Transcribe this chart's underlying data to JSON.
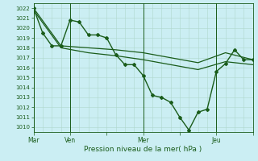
{
  "xlabel": "Pression niveau de la mer( hPa )",
  "ylim": [
    1009.5,
    1022.5
  ],
  "xlim": [
    0,
    48
  ],
  "yticks": [
    1010,
    1011,
    1012,
    1013,
    1014,
    1015,
    1016,
    1017,
    1018,
    1019,
    1020,
    1021,
    1022
  ],
  "bg_color": "#cbeef3",
  "grid_major_color": "#b0d8cc",
  "grid_minor_color": "#cde8e0",
  "line_color": "#1a5c1a",
  "axis_color": "#336633",
  "xtick_labels": [
    "Mar",
    "Ven",
    "",
    "Mer",
    "",
    "Jeu",
    ""
  ],
  "xtick_positions": [
    0,
    8,
    16,
    24,
    32,
    40,
    48
  ],
  "day_vlines": [
    0,
    8,
    24,
    40
  ],
  "series1_x": [
    0,
    2,
    4,
    6,
    8,
    10,
    12,
    14,
    16,
    18,
    20,
    22,
    24,
    26,
    28,
    30,
    32,
    34,
    36,
    38,
    40,
    42,
    44,
    46,
    48
  ],
  "series1_y": [
    1022.0,
    1019.5,
    1018.2,
    1018.2,
    1020.8,
    1020.6,
    1019.3,
    1019.3,
    1019.0,
    1017.3,
    1016.3,
    1016.3,
    1015.2,
    1013.2,
    1013.0,
    1012.5,
    1011.0,
    1009.7,
    1011.5,
    1011.8,
    1015.6,
    1016.4,
    1017.8,
    1016.8,
    1016.8
  ],
  "series2_x": [
    0,
    6,
    12,
    18,
    24,
    30,
    36,
    42,
    48
  ],
  "series2_y": [
    1022.0,
    1018.2,
    1018.0,
    1017.8,
    1017.5,
    1017.0,
    1016.5,
    1017.5,
    1016.8
  ],
  "series3_x": [
    0,
    6,
    12,
    18,
    24,
    30,
    36,
    42,
    48
  ],
  "series3_y": [
    1021.8,
    1018.0,
    1017.5,
    1017.2,
    1016.8,
    1016.3,
    1015.8,
    1016.6,
    1016.3
  ]
}
